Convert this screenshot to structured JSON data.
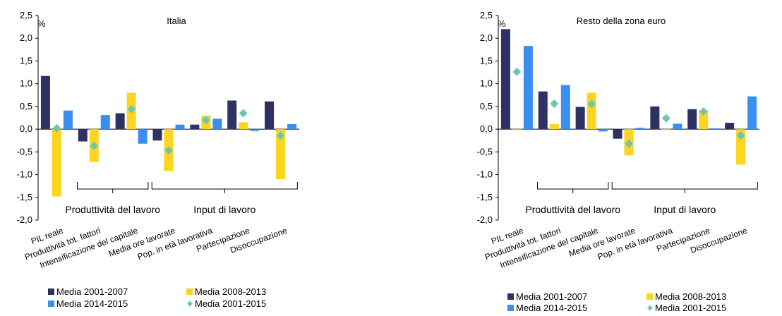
{
  "chart_data": [
    {
      "type": "bar",
      "title": "Italia",
      "ylabel": "%",
      "ylim": [
        -2.0,
        2.5
      ],
      "yticks": [
        "2,5",
        "2,0",
        "1,5",
        "1,0",
        "0,5",
        "0,0",
        "-0,5",
        "-1,0",
        "-1,5",
        "-2,0"
      ],
      "categories": [
        "PIL reale",
        "Produttività tot. fattori",
        "Intensificazione del capitale",
        "Media ore lavorate",
        "Pop. in età lavorativa",
        "Partecipazione",
        "Disoccupazione"
      ],
      "groups": [
        {
          "label": "Produttività del lavoro",
          "from": 1,
          "to": 2
        },
        {
          "label": "Input di lavoro",
          "from": 3,
          "to": 6
        }
      ],
      "grid": false,
      "legend_position": "bottom",
      "series": [
        {
          "name": "Media 2001-2007",
          "type": "bar",
          "color": "#2e3161",
          "values": [
            1.17,
            -0.27,
            0.35,
            -0.25,
            0.1,
            0.63,
            0.61
          ]
        },
        {
          "name": "Media 2008-2013",
          "type": "bar",
          "color": "#fdd520",
          "values": [
            -1.48,
            -0.72,
            0.8,
            -0.92,
            0.3,
            0.15,
            -1.1
          ]
        },
        {
          "name": "Media 2014-2015",
          "type": "bar",
          "color": "#3a8ef0",
          "values": [
            0.41,
            0.31,
            -0.32,
            0.1,
            0.23,
            -0.04,
            0.11
          ]
        },
        {
          "name": "Media 2001-2015",
          "type": "marker",
          "color": "#6fc6ae",
          "values": [
            0.02,
            -0.37,
            0.44,
            -0.47,
            0.2,
            0.35,
            -0.14
          ]
        }
      ]
    },
    {
      "type": "bar",
      "title": "Resto della zona euro",
      "ylabel": "%",
      "ylim": [
        -2.0,
        2.5
      ],
      "yticks": [
        "2,5",
        "2,0",
        "1,5",
        "1,0",
        "0,5",
        "0,0",
        "-0,5",
        "-1,0",
        "-1,5",
        "-2,0"
      ],
      "categories": [
        "PIL reale",
        "Produttività tot. fattori",
        "Intensificazione del capitale",
        "Media ore lavorate",
        "Pop. in età lavorativa",
        "Partecipazione",
        "Disoccupazione"
      ],
      "groups": [
        {
          "label": "Produttività del lavoro",
          "from": 1,
          "to": 2
        },
        {
          "label": "Input di lavoro",
          "from": 3,
          "to": 6
        }
      ],
      "grid": false,
      "legend_position": "bottom",
      "series": [
        {
          "name": "Media 2001-2007",
          "type": "bar",
          "color": "#2e3161",
          "values": [
            2.2,
            0.83,
            0.49,
            -0.21,
            0.5,
            0.44,
            0.14
          ]
        },
        {
          "name": "Media 2008-2013",
          "type": "bar",
          "color": "#fdd520",
          "values": [
            -0.02,
            0.11,
            0.8,
            -0.58,
            -0.02,
            0.42,
            -0.78
          ]
        },
        {
          "name": "Media 2014-2015",
          "type": "bar",
          "color": "#3a8ef0",
          "values": [
            1.83,
            0.97,
            -0.05,
            0.03,
            0.12,
            0.02,
            0.72
          ]
        },
        {
          "name": "Media 2001-2015",
          "type": "marker",
          "color": "#6fc6ae",
          "values": [
            1.26,
            0.56,
            0.55,
            -0.32,
            0.24,
            0.39,
            -0.14
          ]
        }
      ]
    }
  ]
}
